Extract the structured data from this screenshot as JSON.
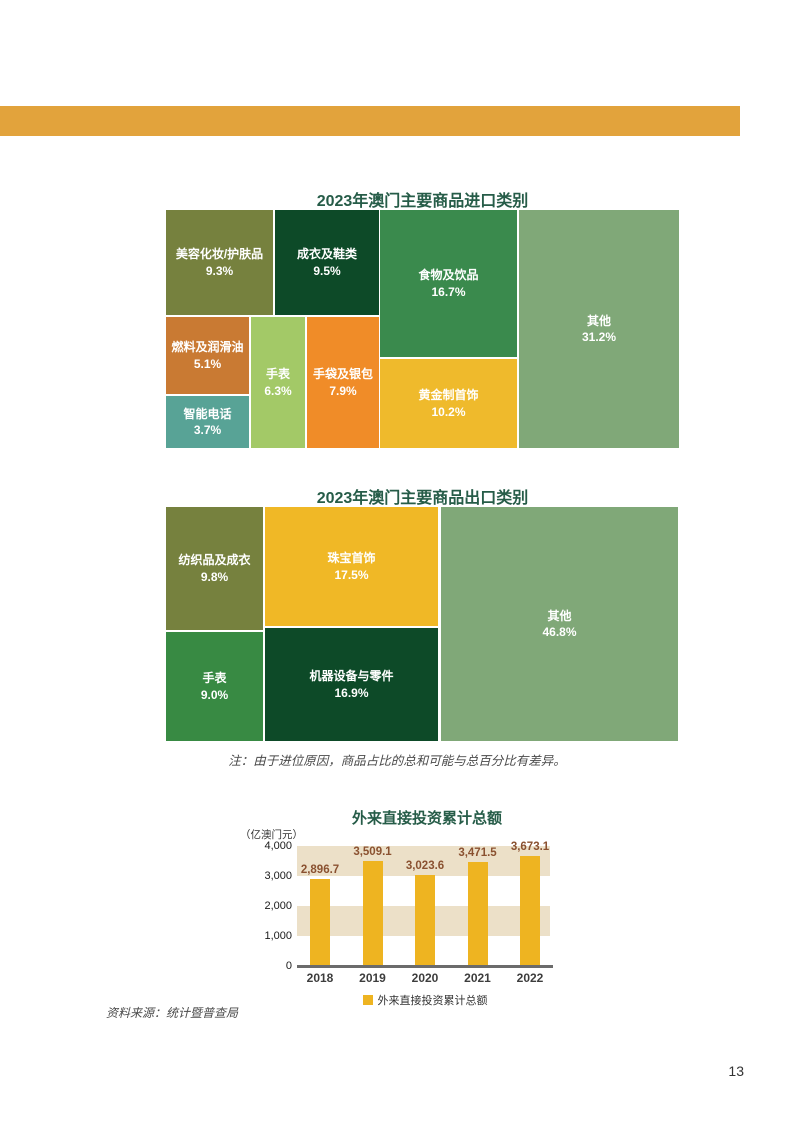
{
  "page": {
    "number": "13"
  },
  "accents": {
    "top_bar_color": "#e2a33c",
    "title_color": "#265c48",
    "axis_color": "#6b6b6b",
    "value_label_color": "#8a5130"
  },
  "note": "注：由于进位原因，商品占比的总和可能与总百分比有差异。",
  "source": "资料来源：统计暨普查局",
  "chart_data": [
    {
      "type": "treemap",
      "title": "2023年澳门主要商品进口类别",
      "items": [
        {
          "label": "美容化妆/护肤品",
          "value": "9.3%",
          "color": "#76813e"
        },
        {
          "label": "成衣及鞋类",
          "value": "9.5%",
          "color": "#0d4a28"
        },
        {
          "label": "食物及饮品",
          "value": "16.7%",
          "color": "#3a8a4d"
        },
        {
          "label": "其他",
          "value": "31.2%",
          "color": "#80a878"
        },
        {
          "label": "燃料及润滑油",
          "value": "5.1%",
          "color": "#c97a33"
        },
        {
          "label": "智能电话",
          "value": "3.7%",
          "color": "#58a396"
        },
        {
          "label": "手表",
          "value": "6.3%",
          "color": "#a3c967"
        },
        {
          "label": "手袋及银包",
          "value": "7.9%",
          "color": "#f08c28"
        },
        {
          "label": "黄金制首饰",
          "value": "10.2%",
          "color": "#efba2c"
        }
      ]
    },
    {
      "type": "treemap",
      "title": "2023年澳门主要商品出口类别",
      "items": [
        {
          "label": "纺织品及成衣",
          "value": "9.8%",
          "color": "#76813e"
        },
        {
          "label": "珠宝首饰",
          "value": "17.5%",
          "color": "#f0b826"
        },
        {
          "label": "其他",
          "value": "46.8%",
          "color": "#80a878"
        },
        {
          "label": "手表",
          "value": "9.0%",
          "color": "#388a43"
        },
        {
          "label": "机器设备与零件",
          "value": "16.9%",
          "color": "#0d4a28"
        }
      ]
    },
    {
      "type": "bar",
      "title": "外来直接投资累计总额",
      "unit_label": "（亿澳门元）",
      "categories": [
        "2018",
        "2019",
        "2020",
        "2021",
        "2022"
      ],
      "values": [
        2896.7,
        3509.1,
        3023.6,
        3471.5,
        3673.1
      ],
      "value_labels": [
        "2,896.7",
        "3,509.1",
        "3,023.6",
        "3,471.5",
        "3,673.1"
      ],
      "ytick_labels": [
        "4,000",
        "3,000",
        "2,000",
        "1,000",
        "0"
      ],
      "ylim": [
        0,
        4000
      ],
      "bar_color": "#eeb421",
      "band_color": "#ece0c8",
      "legend": "外来直接投资累计总额",
      "legend_position": "bottom"
    }
  ]
}
